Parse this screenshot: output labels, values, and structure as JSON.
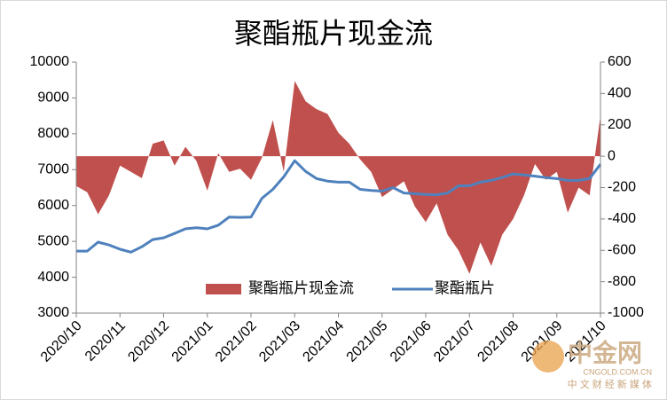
{
  "chart_data": {
    "type": "combo",
    "title": "聚酯瓶片现金流",
    "categories": [
      "2020/10",
      null,
      null,
      null,
      "2020/11",
      null,
      null,
      null,
      "2020/12",
      null,
      null,
      null,
      "2021/01",
      null,
      null,
      null,
      "2021/02",
      null,
      null,
      null,
      "2021/03",
      null,
      null,
      null,
      "2021/04",
      null,
      null,
      null,
      "2021/05",
      null,
      null,
      null,
      "2021/06",
      null,
      null,
      null,
      "2021/07",
      null,
      null,
      null,
      "2021/08",
      null,
      null,
      null,
      "2021/09",
      null,
      null,
      null,
      "2021/10"
    ],
    "series": [
      {
        "name": "聚酯瓶片现金流",
        "type": "area",
        "color": "#c0504d",
        "axis": "y2",
        "values": [
          -190,
          -230,
          -370,
          -250,
          -60,
          -100,
          -140,
          80,
          100,
          -60,
          60,
          -30,
          -220,
          20,
          -100,
          -80,
          -150,
          -10,
          230,
          -100,
          480,
          350,
          300,
          270,
          150,
          80,
          -20,
          -100,
          -260,
          -210,
          -160,
          -320,
          -420,
          -300,
          -500,
          -600,
          -750,
          -550,
          -700,
          -500,
          -400,
          -250,
          -50,
          -150,
          -100,
          -360,
          -200,
          -250,
          260
        ]
      },
      {
        "name": "聚酯瓶片",
        "type": "line",
        "color": "#4f81bd",
        "axis": "y",
        "values": [
          4730,
          4730,
          4980,
          4900,
          4780,
          4700,
          4850,
          5050,
          5100,
          5220,
          5350,
          5380,
          5350,
          5450,
          5680,
          5670,
          5680,
          6200,
          6450,
          6800,
          7250,
          6950,
          6750,
          6680,
          6650,
          6650,
          6450,
          6420,
          6400,
          6500,
          6350,
          6330,
          6310,
          6300,
          6350,
          6550,
          6550,
          6650,
          6700,
          6780,
          6880,
          6850,
          6820,
          6780,
          6750,
          6700,
          6700,
          6750,
          7150
        ]
      }
    ],
    "ylim": [
      3000,
      10000
    ],
    "yticks": [
      3000,
      4000,
      5000,
      6000,
      7000,
      8000,
      9000,
      10000
    ],
    "y2lim": [
      -1000,
      600
    ],
    "y2ticks": [
      -1000,
      -800,
      -600,
      -400,
      -200,
      0,
      200,
      400,
      600
    ],
    "legend": "bottom",
    "watermark": {
      "brand": "中金网",
      "site": "CNGOLD.COM.CN",
      "tagline": "中 文 财 经 新 媒 体"
    }
  }
}
